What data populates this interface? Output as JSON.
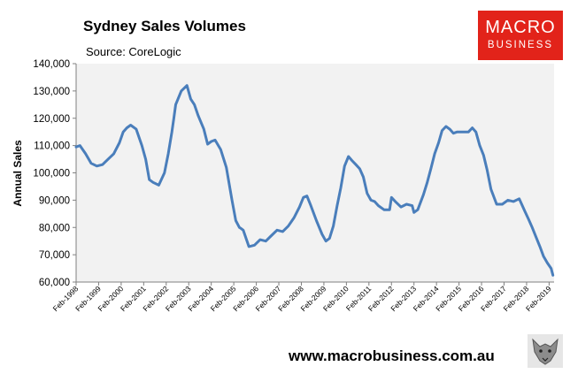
{
  "header": {
    "title": "Sydney Sales Volumes",
    "source": "Source: CoreLogic"
  },
  "logo": {
    "line1": "MACRO",
    "line2": "BUSINESS",
    "color": "#e2231a"
  },
  "footer": {
    "url": "www.macrobusiness.com.au"
  },
  "chart_data": {
    "type": "line",
    "ylabel": "Annual Sales",
    "ylim": [
      60000,
      140000
    ],
    "yticks": [
      60000,
      70000,
      80000,
      90000,
      100000,
      110000,
      120000,
      130000,
      140000
    ],
    "ytick_labels": [
      "60,000",
      "70,000",
      "80,000",
      "90,000",
      "100,000",
      "110,000",
      "120,000",
      "130,000",
      "140,000"
    ],
    "xlim": [
      1998.08,
      2019.3
    ],
    "xtick_values": [
      1998.08,
      1999.08,
      2000.08,
      2001.08,
      2002.08,
      2003.08,
      2004.08,
      2005.08,
      2006.08,
      2007.08,
      2008.08,
      2009.08,
      2010.08,
      2011.08,
      2012.08,
      2013.08,
      2014.08,
      2015.08,
      2016.08,
      2017.08,
      2018.08,
      2019.08
    ],
    "xtick_labels": [
      "Feb-1998",
      "Feb-1999",
      "Feb-2000",
      "Feb-2001",
      "Feb-2002",
      "Feb-2003",
      "Feb-2004",
      "Feb-2005",
      "Feb-2006",
      "Feb-2007",
      "Feb-2008",
      "Feb-2009",
      "Feb-2010",
      "Feb-2011",
      "Feb-2012",
      "Feb-2013",
      "Feb-2014",
      "Feb-2015",
      "Feb-2016",
      "Feb-2017",
      "Feb-2018",
      "Feb-2019"
    ],
    "grid": false,
    "legend": "none",
    "plot_background": "#f2f2f2",
    "line_color": "#4a7ebb",
    "series": [
      {
        "x": [
          1998.08,
          1998.25,
          1998.5,
          1998.75,
          1999.0,
          1999.25,
          1999.5,
          1999.75,
          2000.0,
          2000.17,
          2000.33,
          2000.5,
          2000.75,
          2001.0,
          2001.17,
          2001.33,
          2001.5,
          2001.75,
          2002.0,
          2002.17,
          2002.33,
          2002.42,
          2002.5,
          2002.75,
          2003.0,
          2003.17,
          2003.33,
          2003.5,
          2003.75,
          2003.92,
          2004.08,
          2004.25,
          2004.5,
          2004.75,
          2005.0,
          2005.17,
          2005.33,
          2005.42,
          2005.5,
          2005.75,
          2006.0,
          2006.25,
          2006.5,
          2006.75,
          2007.0,
          2007.25,
          2007.5,
          2007.75,
          2008.0,
          2008.17,
          2008.33,
          2008.5,
          2008.75,
          2009.0,
          2009.17,
          2009.33,
          2009.5,
          2009.67,
          2009.83,
          2010.0,
          2010.17,
          2010.33,
          2010.5,
          2010.67,
          2010.83,
          2011.0,
          2011.17,
          2011.33,
          2011.5,
          2011.75,
          2012.0,
          2012.08,
          2012.25,
          2012.5,
          2012.75,
          2013.0,
          2013.08,
          2013.25,
          2013.5,
          2013.67,
          2013.83,
          2014.0,
          2014.17,
          2014.33,
          2014.5,
          2014.67,
          2014.83,
          2015.0,
          2015.25,
          2015.5,
          2015.67,
          2015.83,
          2016.0,
          2016.17,
          2016.33,
          2016.5,
          2016.75,
          2017.0,
          2017.25,
          2017.5,
          2017.75,
          2018.0,
          2018.17,
          2018.33,
          2018.5,
          2018.67,
          2018.83,
          2019.0,
          2019.17,
          2019.25
        ],
        "y": [
          109500,
          110000,
          107000,
          103500,
          102500,
          103000,
          105000,
          107000,
          111000,
          115000,
          116500,
          117500,
          116000,
          110000,
          105000,
          97500,
          96500,
          95500,
          100000,
          107000,
          115000,
          120000,
          125000,
          130000,
          132000,
          127000,
          125000,
          121000,
          116000,
          110500,
          111500,
          112000,
          108500,
          102000,
          90000,
          82500,
          80000,
          79500,
          79000,
          73000,
          73500,
          75500,
          75000,
          77000,
          79000,
          78500,
          80500,
          83500,
          87500,
          91000,
          91500,
          88000,
          82500,
          77500,
          75000,
          76000,
          80500,
          88000,
          94500,
          102500,
          106000,
          104500,
          103000,
          101500,
          98500,
          92500,
          90000,
          89500,
          88000,
          86500,
          86500,
          91000,
          89500,
          87500,
          88500,
          88000,
          85500,
          86500,
          92000,
          96500,
          101500,
          107000,
          111000,
          115500,
          117000,
          116000,
          114500,
          115000,
          115000,
          115000,
          116500,
          115000,
          110000,
          106500,
          101000,
          94000,
          88500,
          88500,
          90000,
          89500,
          90500,
          86000,
          83000,
          80000,
          76500,
          73000,
          69500,
          67000,
          65000,
          62500
        ]
      }
    ]
  }
}
